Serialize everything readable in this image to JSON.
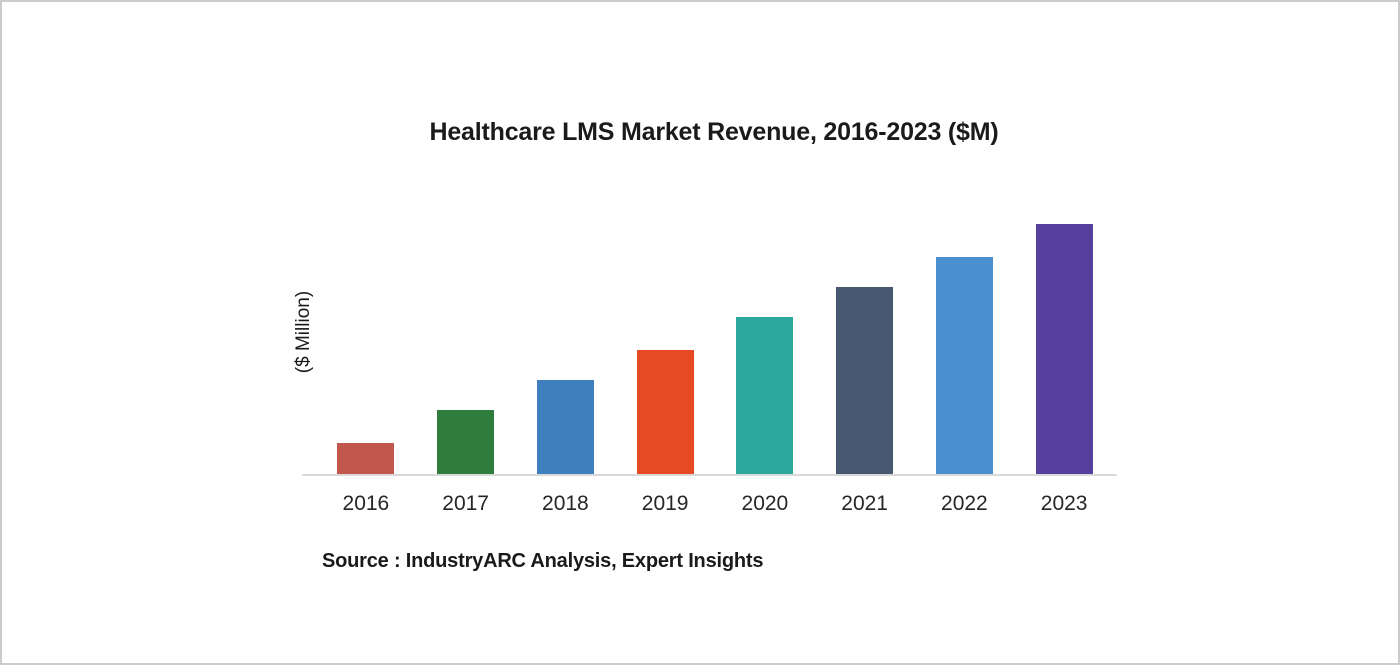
{
  "chart_data": {
    "type": "bar",
    "title": "Healthcare LMS Market Revenue, 2016-2023 ($M)",
    "xlabel": "",
    "ylabel": "($ Million)",
    "categories": [
      "2016",
      "2017",
      "2018",
      "2019",
      "2020",
      "2021",
      "2022",
      "2023"
    ],
    "values": [
      12.4,
      25.6,
      37.6,
      49.6,
      62.8,
      74.8,
      86.8,
      100
    ],
    "values_note": "Relative bar heights as % of 2023 bar; y-axis shows no numeric tick labels in the image",
    "ylim": [
      0,
      100
    ],
    "grid": false,
    "legend": "none",
    "bar_colors": [
      "#c2574d",
      "#2e7d3c",
      "#3f7fbe",
      "#e64a22",
      "#2ba89b",
      "#475770",
      "#4a90d0",
      "#55409e"
    ],
    "axis_line_color": "#d9d9d9"
  },
  "source": {
    "label": "Source : IndustryARC Analysis, Expert Insights"
  },
  "page": {
    "background": "#ffffff",
    "border_color": "#cccccc"
  }
}
